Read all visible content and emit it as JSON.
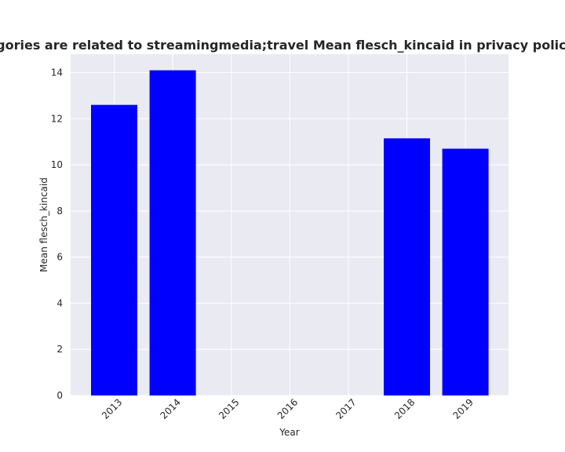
{
  "chart_data": {
    "type": "bar",
    "title": "When categories are related to streamingmedia;travel Mean flesch_kincaid in privacy policies by year",
    "xlabel": "Year",
    "ylabel": "Mean flesch_kincaid",
    "categories": [
      "2013",
      "2014",
      "2015",
      "2016",
      "2017",
      "2018",
      "2019"
    ],
    "values": [
      12.6,
      14.1,
      null,
      null,
      null,
      11.15,
      10.7
    ],
    "ylim": [
      0,
      14.8
    ],
    "yticks": [
      "0",
      "2",
      "4",
      "6",
      "8",
      "10",
      "12",
      "14"
    ],
    "grid": true,
    "bar_color": "#0000ff",
    "background_color": "#eaeaf2",
    "grid_color": "#ffffff"
  }
}
